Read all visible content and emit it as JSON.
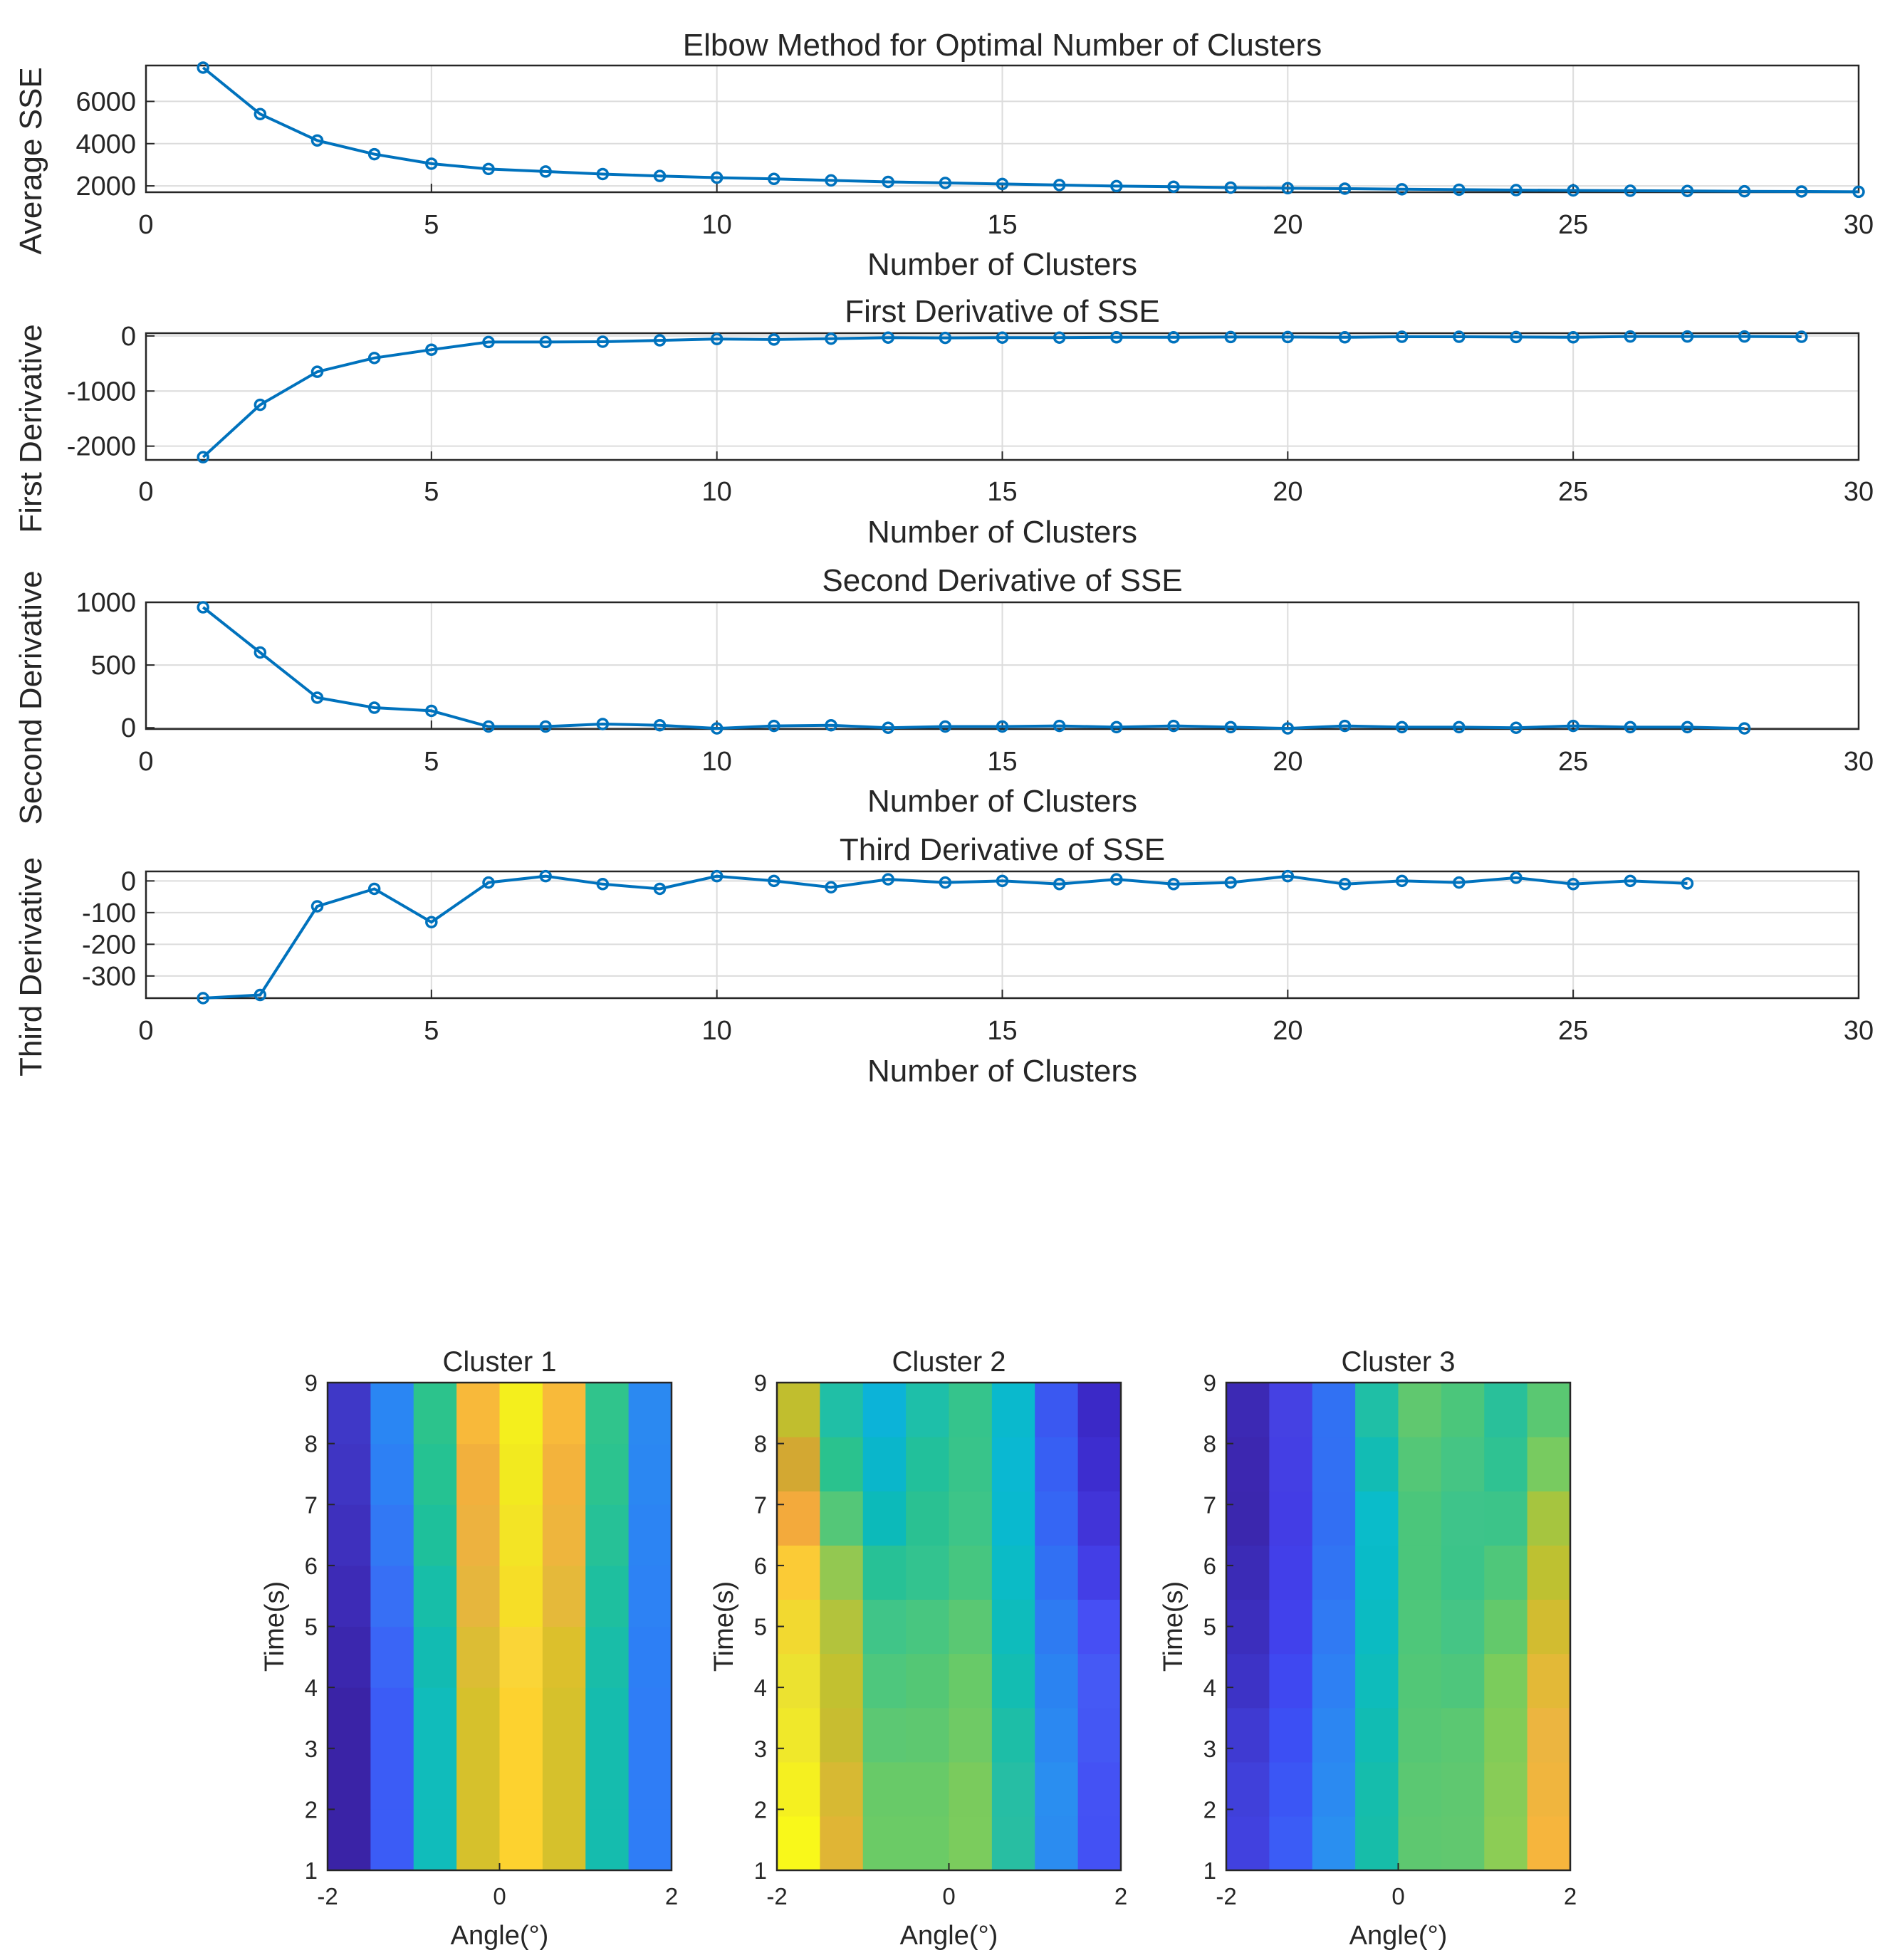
{
  "chart_data": [
    {
      "type": "line",
      "title": "Elbow Method for Optimal Number of Clusters",
      "xlabel": "Number of Clusters",
      "ylabel": "Average SSE",
      "xlim": [
        0,
        30
      ],
      "ylim": [
        1700,
        7700
      ],
      "xticks": [
        "0",
        "5",
        "10",
        "15",
        "20",
        "25",
        "30"
      ],
      "yticks": [
        {
          "v": 2000,
          "label": "2000"
        },
        {
          "v": 4000,
          "label": "4000"
        },
        {
          "v": 6000,
          "label": "6000"
        }
      ],
      "grid": true,
      "color": "#0072BD",
      "x": [
        1,
        2,
        3,
        4,
        5,
        6,
        7,
        8,
        9,
        10,
        11,
        12,
        13,
        14,
        15,
        16,
        17,
        18,
        19,
        20,
        21,
        22,
        23,
        24,
        25,
        26,
        27,
        28,
        29,
        30
      ],
      "y": [
        7600,
        5400,
        4150,
        3500,
        3050,
        2800,
        2680,
        2560,
        2470,
        2390,
        2330,
        2260,
        2190,
        2140,
        2090,
        2040,
        1990,
        1960,
        1920,
        1890,
        1870,
        1840,
        1820,
        1800,
        1785,
        1770,
        1760,
        1745,
        1735,
        1720
      ]
    },
    {
      "type": "line",
      "title": "First Derivative of SSE",
      "xlabel": "Number of Clusters",
      "ylabel": "First Derivative",
      "xlim": [
        0,
        30
      ],
      "ylim": [
        -2250,
        50
      ],
      "xticks": [
        "0",
        "5",
        "10",
        "15",
        "20",
        "25",
        "30"
      ],
      "yticks": [
        {
          "v": 0,
          "label": "0"
        },
        {
          "v": -1000,
          "label": "-1000"
        },
        {
          "v": -2000,
          "label": "-2000"
        }
      ],
      "grid": true,
      "color": "#0072BD",
      "x": [
        1,
        2,
        3,
        4,
        5,
        6,
        7,
        8,
        9,
        10,
        11,
        12,
        13,
        14,
        15,
        16,
        17,
        18,
        19,
        20,
        21,
        22,
        23,
        24,
        25,
        26,
        27,
        28,
        29
      ],
      "y": [
        -2200,
        -1250,
        -650,
        -400,
        -250,
        -110,
        -110,
        -105,
        -80,
        -55,
        -65,
        -50,
        -30,
        -35,
        -30,
        -30,
        -25,
        -25,
        -20,
        -20,
        -25,
        -15,
        -15,
        -20,
        -25,
        -10,
        -10,
        -10,
        -15
      ]
    },
    {
      "type": "line",
      "title": "Second Derivative of SSE",
      "xlabel": "Number of Clusters",
      "ylabel": "Second Derivative",
      "xlim": [
        0,
        30
      ],
      "ylim": [
        -10,
        1000
      ],
      "xticks": [
        "0",
        "5",
        "10",
        "15",
        "20",
        "25",
        "30"
      ],
      "yticks": [
        {
          "v": 0,
          "label": "0"
        },
        {
          "v": 500,
          "label": "500"
        },
        {
          "v": 1000,
          "label": "1000"
        }
      ],
      "grid": true,
      "color": "#0072BD",
      "x": [
        1,
        2,
        3,
        4,
        5,
        6,
        7,
        8,
        9,
        10,
        11,
        12,
        13,
        14,
        15,
        16,
        17,
        18,
        19,
        20,
        21,
        22,
        23,
        24,
        25,
        26,
        27,
        28
      ],
      "y": [
        960,
        600,
        240,
        160,
        135,
        10,
        10,
        30,
        20,
        -5,
        15,
        20,
        0,
        10,
        10,
        15,
        5,
        15,
        5,
        -5,
        15,
        5,
        5,
        0,
        15,
        5,
        5,
        -5
      ]
    },
    {
      "type": "line",
      "title": "Third Derivative of SSE",
      "xlabel": "Number of Clusters",
      "ylabel": "Third Derivative",
      "xlim": [
        0,
        30
      ],
      "ylim": [
        -370,
        30
      ],
      "xticks": [
        "0",
        "5",
        "10",
        "15",
        "20",
        "25",
        "30"
      ],
      "yticks": [
        {
          "v": 0,
          "label": "0"
        },
        {
          "v": -100,
          "label": "-100"
        },
        {
          "v": -200,
          "label": "-200"
        },
        {
          "v": -300,
          "label": "-300"
        }
      ],
      "grid": true,
      "color": "#0072BD",
      "x": [
        1,
        2,
        3,
        4,
        5,
        6,
        7,
        8,
        9,
        10,
        11,
        12,
        13,
        14,
        15,
        16,
        17,
        18,
        19,
        20,
        21,
        22,
        23,
        24,
        25,
        26,
        27
      ],
      "y": [
        -370,
        -360,
        -80,
        -25,
        -130,
        -5,
        15,
        -10,
        -25,
        15,
        0,
        -20,
        5,
        -5,
        0,
        -10,
        5,
        -10,
        -5,
        15,
        -10,
        0,
        -5,
        10,
        -10,
        0,
        -8
      ]
    },
    {
      "type": "heatmap",
      "title": "Cluster 1",
      "xlabel": "Angle(°)",
      "ylabel": "Time(s)",
      "xlim": [
        -2,
        2
      ],
      "ylim": [
        1,
        9
      ],
      "xticks": [
        "-2",
        "0",
        "2"
      ],
      "yticks": [
        "1",
        "2",
        "3",
        "4",
        "5",
        "6",
        "7",
        "8",
        "9"
      ],
      "columns": 8,
      "rows_bottom_to_top": [
        [
          "#3a23a6",
          "#3b5cf6",
          "#10bcbb",
          "#d6c12c",
          "#fdd22f",
          "#d6c12c",
          "#15bcae",
          "#2f7df6"
        ],
        [
          "#3a23a6",
          "#3b5cf6",
          "#10bcbb",
          "#d6c12c",
          "#fdd22f",
          "#d6c12c",
          "#15bcae",
          "#2f7df6"
        ],
        [
          "#3a23a6",
          "#3b5cf6",
          "#10bcbb",
          "#d6c12c",
          "#fdd22f",
          "#d6c12c",
          "#15bcae",
          "#2f7df6"
        ],
        [
          "#3b27ae",
          "#3a65f6",
          "#12bbb2",
          "#dcbd34",
          "#fad537",
          "#dcc02c",
          "#19bda8",
          "#2d7ff5"
        ],
        [
          "#3d2bb6",
          "#376ff5",
          "#17bea8",
          "#e6b63d",
          "#f6de27",
          "#e5b93a",
          "#1ebf9f",
          "#2d82f4"
        ],
        [
          "#3e30bd",
          "#3278f4",
          "#1ec09b",
          "#edb23f",
          "#f3e425",
          "#eeb53d",
          "#26c197",
          "#2c84f3"
        ],
        [
          "#3f35c3",
          "#2d80f4",
          "#25c292",
          "#f2b03d",
          "#f2ea1f",
          "#f3b33c",
          "#2cc38f",
          "#2b87f2"
        ],
        [
          "#3f38c7",
          "#2a86f3",
          "#2cc38c",
          "#f8b93a",
          "#f4ef1d",
          "#f8ba3a",
          "#30c48c",
          "#2b89f1"
        ]
      ]
    },
    {
      "type": "heatmap",
      "title": "Cluster 2",
      "xlabel": "Angle(°)",
      "ylabel": "Time(s)",
      "xlim": [
        -2,
        2
      ],
      "ylim": [
        1,
        9
      ],
      "xticks": [
        "-2",
        "0",
        "2"
      ],
      "yticks": [
        "1",
        "2",
        "3",
        "4",
        "5",
        "6",
        "7",
        "8",
        "9"
      ],
      "columns": 8,
      "rows_bottom_to_top": [
        [
          "#f9f81a",
          "#e0b535",
          "#6bcb66",
          "#6bcb66",
          "#7bcc5d",
          "#28bea2",
          "#2b8cf0",
          "#4351f4"
        ],
        [
          "#f5f020",
          "#d7b933",
          "#68ca68",
          "#68ca68",
          "#7acb5d",
          "#26bea4",
          "#2a8ef0",
          "#4452f4"
        ],
        [
          "#f0e82a",
          "#c8bd30",
          "#5cc873",
          "#5ec870",
          "#6fca65",
          "#1dbea7",
          "#2b88f1",
          "#4457f4"
        ],
        [
          "#ece230",
          "#c2c130",
          "#4ec77d",
          "#54c775",
          "#68ca68",
          "#13bdb2",
          "#2b83f1",
          "#4559f5"
        ],
        [
          "#f2d930",
          "#b3c33c",
          "#40c588",
          "#48c680",
          "#5ac873",
          "#0ebcbc",
          "#2e7bf2",
          "#464ff4"
        ],
        [
          "#fbcb36",
          "#93c851",
          "#27c196",
          "#33c38f",
          "#46c680",
          "#0bbbc6",
          "#3170f3",
          "#433ee6"
        ],
        [
          "#f3aa3c",
          "#54c778",
          "#0cbaba",
          "#2ac192",
          "#3dc588",
          "#09b9cf",
          "#3566f4",
          "#4134d8"
        ],
        [
          "#d3a832",
          "#2ac28e",
          "#0ab6cb",
          "#22c09b",
          "#38c48a",
          "#0ab8d2",
          "#375ff3",
          "#3d2dcf"
        ],
        [
          "#c1be2e",
          "#20bfa6",
          "#0cb3d8",
          "#1ebfa9",
          "#35c48c",
          "#0ab9cd",
          "#3a58f1",
          "#3b29c7"
        ]
      ]
    },
    {
      "type": "heatmap",
      "title": "Cluster 3",
      "xlabel": "Angle(°)",
      "ylabel": "Time(s)",
      "xlim": [
        -2,
        2
      ],
      "ylim": [
        1,
        9
      ],
      "xticks": [
        "-2",
        "0",
        "2"
      ],
      "yticks": [
        "1",
        "2",
        "3",
        "4",
        "5",
        "6",
        "7",
        "8",
        "9"
      ],
      "columns": 8,
      "rows_bottom_to_top": [
        [
          "#4141df",
          "#3b5cf6",
          "#2a8ff0",
          "#17bda9",
          "#5ec870",
          "#61c86f",
          "#8ccd55",
          "#f6b53d"
        ],
        [
          "#4040da",
          "#3b56f5",
          "#2b8af1",
          "#15bdac",
          "#5bc872",
          "#5fc870",
          "#88cc57",
          "#f0b53e"
        ],
        [
          "#3f3ad2",
          "#3c4ff4",
          "#2c86f2",
          "#11bcb3",
          "#56c775",
          "#5bc872",
          "#82cc58",
          "#ecb540"
        ],
        [
          "#3d33c6",
          "#3f48f1",
          "#2e80f3",
          "#0ebcbb",
          "#52c777",
          "#4ec67c",
          "#7bcc5c",
          "#e3b937"
        ],
        [
          "#3c2ebd",
          "#4141ec",
          "#307af3",
          "#0bbbc2",
          "#4ec77a",
          "#45c585",
          "#63c96b",
          "#d2bc30"
        ],
        [
          "#3b2bb6",
          "#423fe9",
          "#3174f3",
          "#09bbc8",
          "#4bc67b",
          "#3cc489",
          "#4fc77a",
          "#bec131"
        ],
        [
          "#3b27ae",
          "#433de5",
          "#326ff3",
          "#0abcca",
          "#4bc67b",
          "#3ec48a",
          "#3cc489",
          "#a6c53f"
        ],
        [
          "#3c27b0",
          "#443fe4",
          "#3270f3",
          "#12bcb4",
          "#54c777",
          "#45c584",
          "#2fc292",
          "#78cb60"
        ],
        [
          "#3c29b4",
          "#4541e3",
          "#3171f3",
          "#1fbfa6",
          "#60c86f",
          "#4bc67b",
          "#29c09a",
          "#5ac872"
        ]
      ]
    }
  ]
}
